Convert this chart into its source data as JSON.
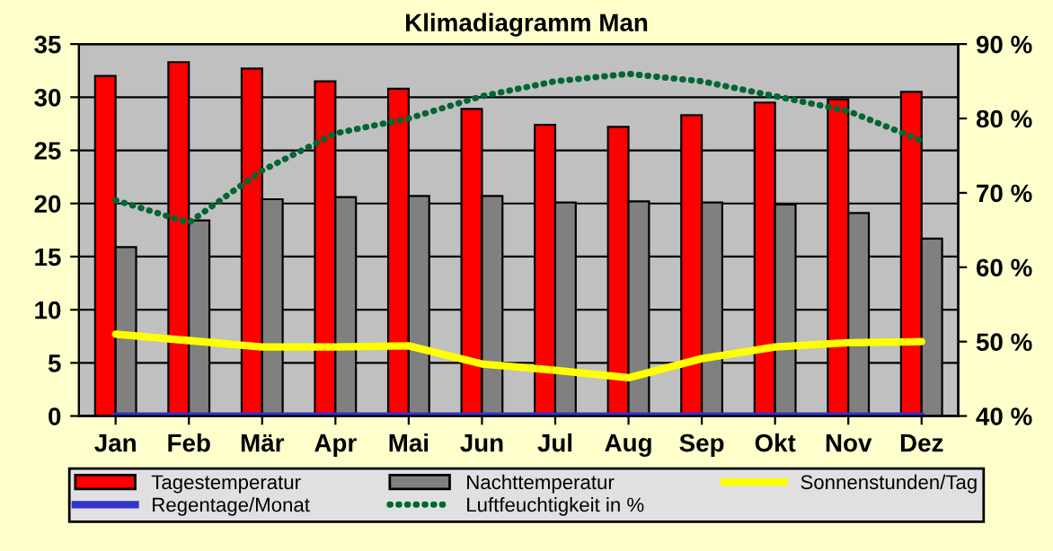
{
  "chart_data": {
    "type": "bar",
    "title": "Klimadiagramm Man",
    "categories": [
      "Jan",
      "Feb",
      "Mär",
      "Apr",
      "Mai",
      "Jun",
      "Jul",
      "Aug",
      "Sep",
      "Okt",
      "Nov",
      "Dez"
    ],
    "series": [
      {
        "name": "Tagestemperatur",
        "color": "#ff0000",
        "values": [
          32.0,
          33.3,
          32.7,
          31.5,
          30.8,
          28.9,
          27.4,
          27.2,
          28.3,
          29.5,
          29.8,
          30.5
        ]
      },
      {
        "name": "Nachttemperatur",
        "color": "#808080",
        "values": [
          15.9,
          18.4,
          20.4,
          20.6,
          20.7,
          20.7,
          20.1,
          20.2,
          20.1,
          19.9,
          19.1,
          16.7
        ]
      },
      {
        "name": "Sonnenstunden/Tag",
        "type": "line",
        "color": "#ffff00",
        "line_style": "solid",
        "values": [
          7.7,
          7.1,
          6.5,
          6.5,
          6.6,
          4.9,
          4.3,
          3.6,
          5.4,
          6.5,
          6.9,
          7.0
        ]
      },
      {
        "name": "Regentage/Monat",
        "type": "line",
        "color": "#3333cc",
        "line_style": "solid",
        "values": [
          0,
          0,
          0,
          0,
          0,
          0,
          0,
          0,
          0,
          0,
          0,
          0
        ]
      },
      {
        "name": "Luftfeuchtigkeit in %",
        "type": "line",
        "color": "#006633",
        "line_style": "dotted",
        "axis": "y2",
        "values": [
          69,
          66,
          73,
          78,
          80,
          83,
          85,
          86,
          85,
          83,
          81,
          77
        ]
      }
    ],
    "ylim": [
      0,
      35
    ],
    "yticks": [
      0,
      5,
      10,
      15,
      20,
      25,
      30,
      35
    ],
    "y2lim": [
      40,
      90
    ],
    "y2ticks": [
      {
        "value": 40,
        "label": "40 %"
      },
      {
        "value": 50,
        "label": "50 %"
      },
      {
        "value": 60,
        "label": "60 %"
      },
      {
        "value": 70,
        "label": "70 %"
      },
      {
        "value": 80,
        "label": "80 %"
      },
      {
        "value": 90,
        "label": "90 %"
      }
    ],
    "grid": "y",
    "legend": "bottom",
    "marker": "none"
  }
}
